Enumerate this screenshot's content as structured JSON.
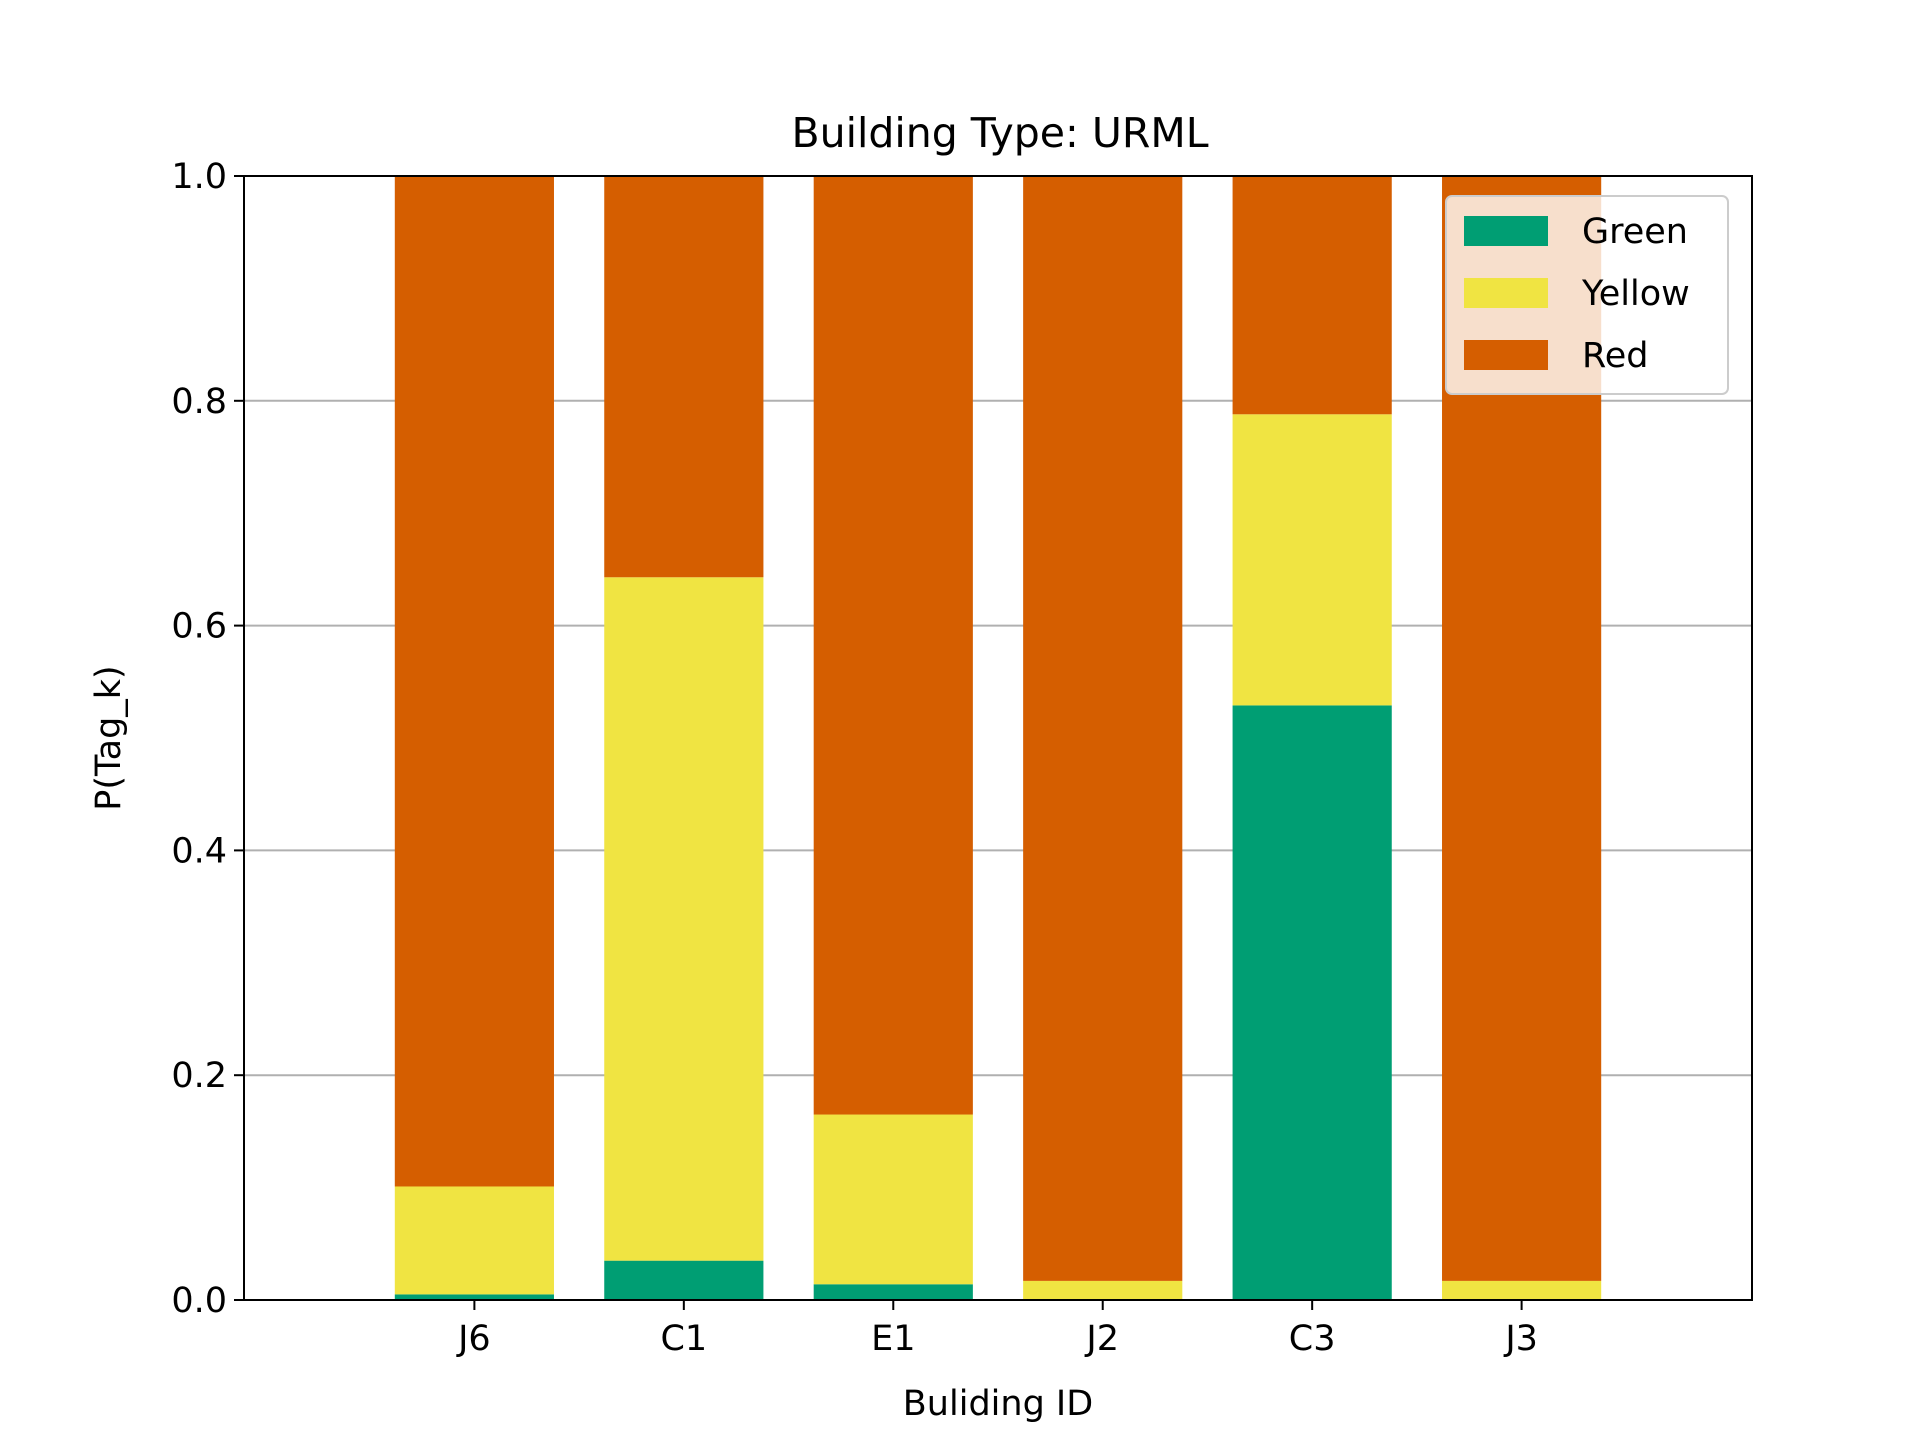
{
  "chart_data": {
    "type": "bar",
    "stacked": true,
    "title": "Building Type: URML",
    "xlabel": "Buliding ID",
    "ylabel": "P(Tag_k)",
    "categories": [
      "J6",
      "C1",
      "E1",
      "J2",
      "C3",
      "J3"
    ],
    "series": [
      {
        "name": "Green",
        "color": "#009E73",
        "values": [
          0.005,
          0.035,
          0.014,
          0.0,
          0.529,
          0.0
        ]
      },
      {
        "name": "Yellow",
        "color": "#F0E442",
        "values": [
          0.096,
          0.608,
          0.151,
          0.017,
          0.259,
          0.017
        ]
      },
      {
        "name": "Red",
        "color": "#D55E00",
        "values": [
          0.899,
          0.357,
          0.835,
          0.983,
          0.212,
          0.983
        ]
      }
    ],
    "ylim": [
      0.0,
      1.0
    ],
    "yticks": [
      "0.0",
      "0.2",
      "0.4",
      "0.6",
      "0.8",
      "1.0"
    ],
    "grid": "y-major",
    "legend_position": "top-right"
  }
}
